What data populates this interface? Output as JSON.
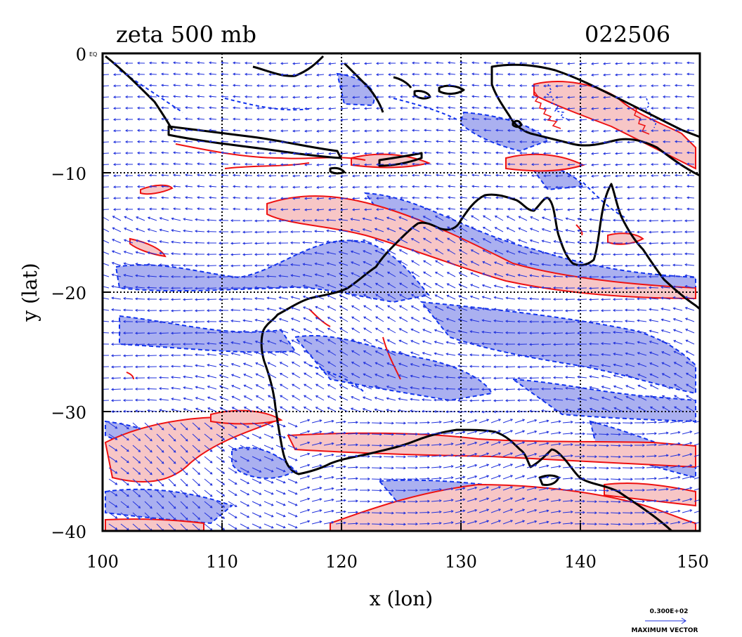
{
  "figure": {
    "title_left": "zeta 500 mb",
    "title_right": "022506",
    "corner_label": "EQ",
    "xlabel": "x (lon)",
    "ylabel": "y (lat)"
  },
  "axes": {
    "x_ticks": [
      "100",
      "110",
      "120",
      "130",
      "140",
      "150"
    ],
    "y_ticks": [
      "0",
      "−10",
      "−20",
      "−30",
      "−40"
    ],
    "x_range": [
      100,
      150
    ],
    "y_range": [
      -40,
      0
    ],
    "grid": "dotted every 10 degrees"
  },
  "legend": {
    "max_value": "0.300E+02",
    "max_label": "MAXIMUM VECTOR"
  },
  "colors": {
    "positive_fill": "#f7c6c6",
    "positive_line": "#ee1111",
    "negative_fill": "#aab0f0",
    "negative_line": "#1133ee",
    "coast": "#000000",
    "vectors": "#2233dd"
  }
}
